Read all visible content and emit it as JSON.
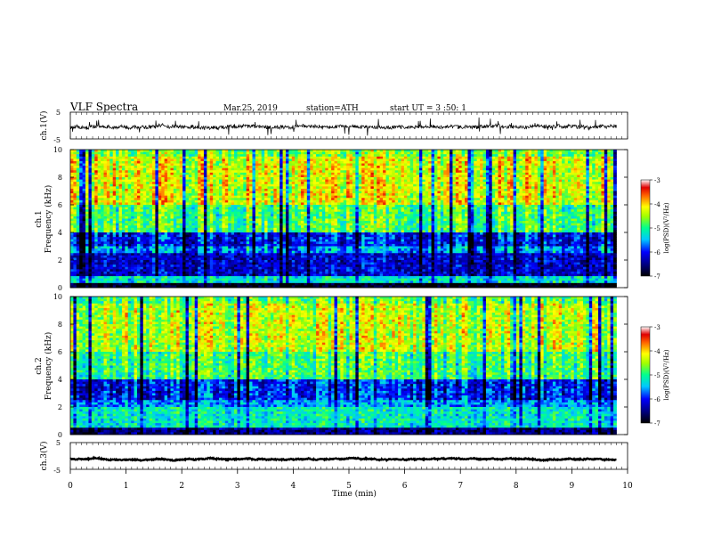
{
  "header": {
    "title": "VLF Spectra",
    "date": "Mar.25, 2019",
    "station": "station=ATH",
    "start": "start UT = 3 :50: 1"
  },
  "chart_data": [
    {
      "type": "line",
      "ylabel": "ch.1(V)",
      "ylim": [
        -5,
        5
      ],
      "yticks": [
        "5",
        "-5"
      ],
      "xlim": [
        0,
        10
      ],
      "mean_level": -0.5,
      "series_end": 9.8
    },
    {
      "type": "heatmap",
      "ylabel": "Frequency (kHz)",
      "channel": "ch.1",
      "ylim": [
        0,
        10
      ],
      "yticks": [
        "0",
        "2",
        "4",
        "6",
        "8",
        "10"
      ],
      "xlim": [
        0,
        9.8
      ],
      "colorbar": {
        "label": "log(PSD)(V²/Hz)",
        "range": [
          -7,
          -3
        ],
        "ticks": [
          "-3",
          "-4",
          "-5",
          "-6",
          "-7"
        ]
      },
      "bands_kHz": [
        {
          "from": 0.0,
          "to": 0.3,
          "log_psd": -7.0
        },
        {
          "from": 0.3,
          "to": 0.8,
          "log_psd": -5.2
        },
        {
          "from": 0.8,
          "to": 2.5,
          "log_psd": -6.2
        },
        {
          "from": 2.5,
          "to": 3.0,
          "log_psd": -5.6
        },
        {
          "from": 3.0,
          "to": 4.0,
          "log_psd": -6.0
        },
        {
          "from": 4.0,
          "to": 6.0,
          "log_psd": -4.8
        },
        {
          "from": 6.0,
          "to": 9.5,
          "log_psd": -4.2
        },
        {
          "from": 9.5,
          "to": 10.0,
          "log_psd": -4.6
        }
      ]
    },
    {
      "type": "heatmap",
      "ylabel": "Frequency (kHz)",
      "channel": "ch.2",
      "ylim": [
        0,
        10
      ],
      "yticks": [
        "0",
        "2",
        "4",
        "6",
        "8",
        "10"
      ],
      "xlim": [
        0,
        9.8
      ],
      "colorbar": {
        "label": "log(PSD)(V²/Hz)",
        "range": [
          -7,
          -3
        ],
        "ticks": [
          "-3",
          "-4",
          "-5",
          "-6",
          "-7"
        ]
      },
      "bands_kHz": [
        {
          "from": 0.0,
          "to": 0.5,
          "log_psd": -6.5
        },
        {
          "from": 0.5,
          "to": 2.0,
          "log_psd": -5.2
        },
        {
          "from": 2.0,
          "to": 2.5,
          "log_psd": -5.6
        },
        {
          "from": 2.5,
          "to": 4.0,
          "log_psd": -6.0
        },
        {
          "from": 4.0,
          "to": 6.0,
          "log_psd": -4.9
        },
        {
          "from": 6.0,
          "to": 9.5,
          "log_psd": -4.4
        },
        {
          "from": 9.5,
          "to": 10.0,
          "log_psd": -4.8
        }
      ]
    },
    {
      "type": "line",
      "ylabel": "ch.3(V)",
      "ylim": [
        -5,
        5
      ],
      "yticks": [
        "5",
        "-5"
      ],
      "xlim": [
        0,
        10
      ],
      "mean_level": -1.2,
      "series_end": 9.8
    }
  ],
  "xaxis": {
    "label": "Time (min)",
    "range": [
      0,
      10
    ],
    "ticks": [
      "0",
      "1",
      "2",
      "3",
      "4",
      "5",
      "6",
      "7",
      "8",
      "9",
      "10"
    ]
  }
}
